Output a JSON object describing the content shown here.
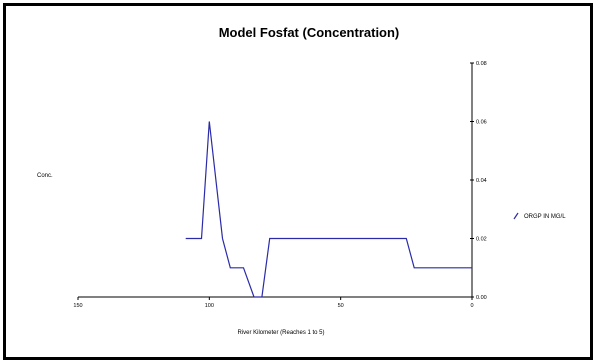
{
  "chart_data": {
    "type": "line",
    "title": "Model Fosfat (Concentration)",
    "xlabel": "River Kilometer (Reaches 1 to 5)",
    "ylabel": "Conc.",
    "x_reversed": true,
    "xlim": [
      150,
      0
    ],
    "ylim": [
      0,
      0.08
    ],
    "xticks": [
      150,
      100,
      50,
      0
    ],
    "xtick_labels": [
      "150",
      "100",
      "50",
      "0"
    ],
    "yticks": [
      0,
      0.02,
      0.04,
      0.06,
      0.08
    ],
    "ytick_labels": [
      "0.00",
      "0.02",
      "0.04",
      "0.06",
      "0.08"
    ],
    "grid": false,
    "legend_position": "right",
    "series": [
      {
        "name": "ORGP IN MG/L",
        "color": "#2b2ba8",
        "x": [
          109,
          103,
          100,
          95,
          92,
          87,
          83,
          80,
          77,
          76,
          74,
          25,
          22,
          0
        ],
        "y": [
          0.02,
          0.02,
          0.06,
          0.02,
          0.01,
          0.01,
          0.0,
          0.0,
          0.02,
          0.02,
          0.02,
          0.02,
          0.01,
          0.01
        ]
      }
    ]
  }
}
